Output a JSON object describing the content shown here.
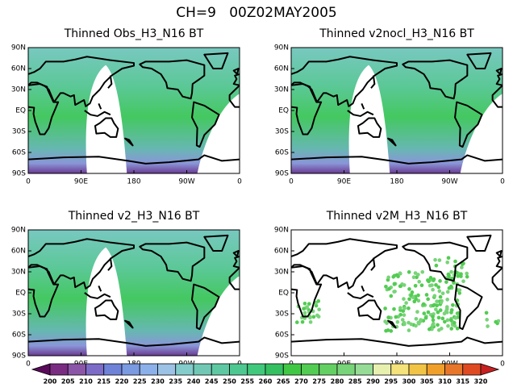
{
  "title": "CH=9   00Z02MAY2005",
  "panels": [
    {
      "title": "Thinned Obs_H3_N16 BT"
    },
    {
      "title": "Thinned v2nocl_H3_N16 BT"
    },
    {
      "title": "Thinned v2_H3_N16 BT"
    },
    {
      "title": "Thinned v2M_H3_N16 BT"
    }
  ],
  "axes": {
    "xticks": [
      "0",
      "90E",
      "180",
      "90W",
      "0"
    ],
    "yticks": [
      "90N",
      "60N",
      "30N",
      "EQ",
      "30S",
      "60S",
      "90S"
    ]
  },
  "colorbar": {
    "levels": [
      200,
      205,
      210,
      215,
      220,
      225,
      230,
      235,
      240,
      245,
      250,
      255,
      260,
      265,
      270,
      275,
      280,
      285,
      290,
      295,
      300,
      305,
      310,
      315,
      320
    ],
    "colors": [
      "#5a0a5a",
      "#7a2c82",
      "#8c56a8",
      "#7c6cc8",
      "#6e82d8",
      "#7a9ae2",
      "#8cb0ea",
      "#9cc2e6",
      "#84cccc",
      "#70c8b4",
      "#5ec8a2",
      "#4ec890",
      "#40c87c",
      "#34c060",
      "#40c844",
      "#52cc52",
      "#64d064",
      "#78d478",
      "#96dc96",
      "#e8f0b0",
      "#f4e27a",
      "#f2c446",
      "#f0a02a",
      "#e8762a",
      "#e04a22",
      "#c82020"
    ]
  }
}
